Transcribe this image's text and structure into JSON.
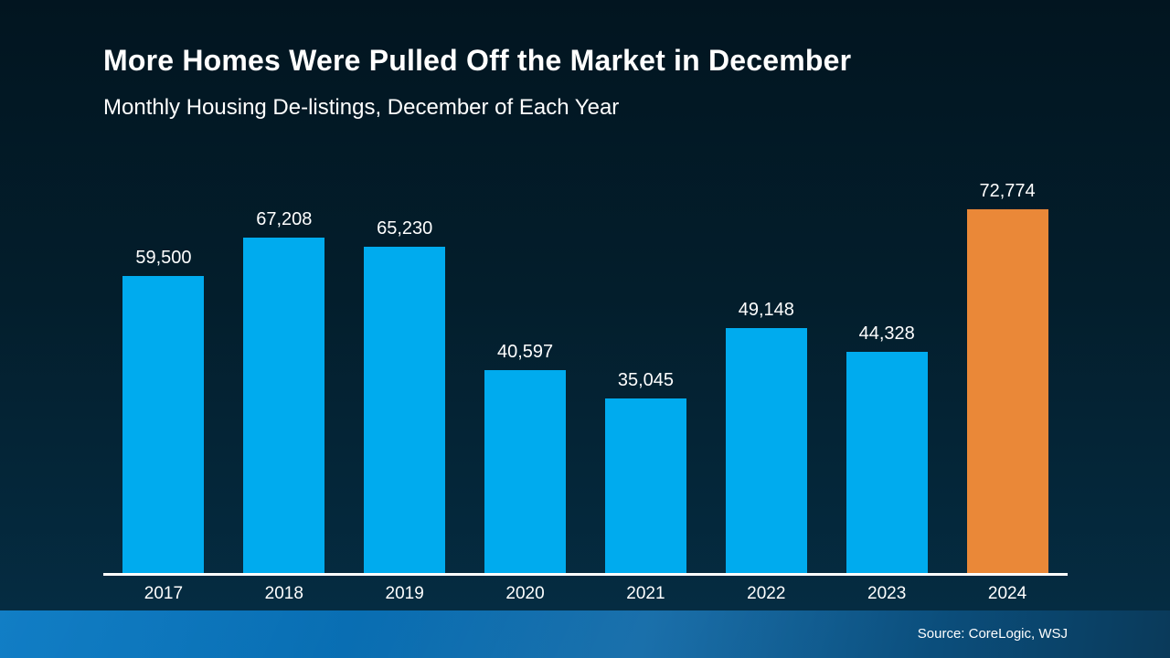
{
  "slide": {
    "title": "More Homes Were Pulled Off the Market in December",
    "subtitle": "Monthly Housing De-listings, December of Each Year",
    "source": "Source: CoreLogic, WSJ"
  },
  "colors": {
    "background_top": "#021520",
    "background_bottom": "#052c42",
    "bar_blue": "#00abee",
    "bar_highlight_orange": "#ea8838",
    "axis_line": "#ffffff",
    "text": "#ffffff",
    "footer_gradient_left": "#0577c2",
    "footer_gradient_right": "#0a3a5a"
  },
  "chart_data": {
    "type": "bar",
    "title": "More Homes Were Pulled Off the Market in December",
    "subtitle": "Monthly Housing De-listings, December of Each Year",
    "categories": [
      "2017",
      "2018",
      "2019",
      "2020",
      "2021",
      "2022",
      "2023",
      "2024"
    ],
    "values": [
      59500,
      67208,
      65230,
      40597,
      35045,
      49148,
      44328,
      72774
    ],
    "value_labels": [
      "59,500",
      "67,208",
      "65,230",
      "40,597",
      "35,045",
      "49,148",
      "44,328",
      "72,774"
    ],
    "highlight_category": "2024",
    "bar_color": "#00abee",
    "highlight_color": "#ea8838",
    "xlabel": "",
    "ylabel": "",
    "ylim": [
      0,
      72774
    ],
    "grid": false,
    "legend": false,
    "data_labels_position": "above-bar",
    "source": "Source: CoreLogic, WSJ"
  }
}
